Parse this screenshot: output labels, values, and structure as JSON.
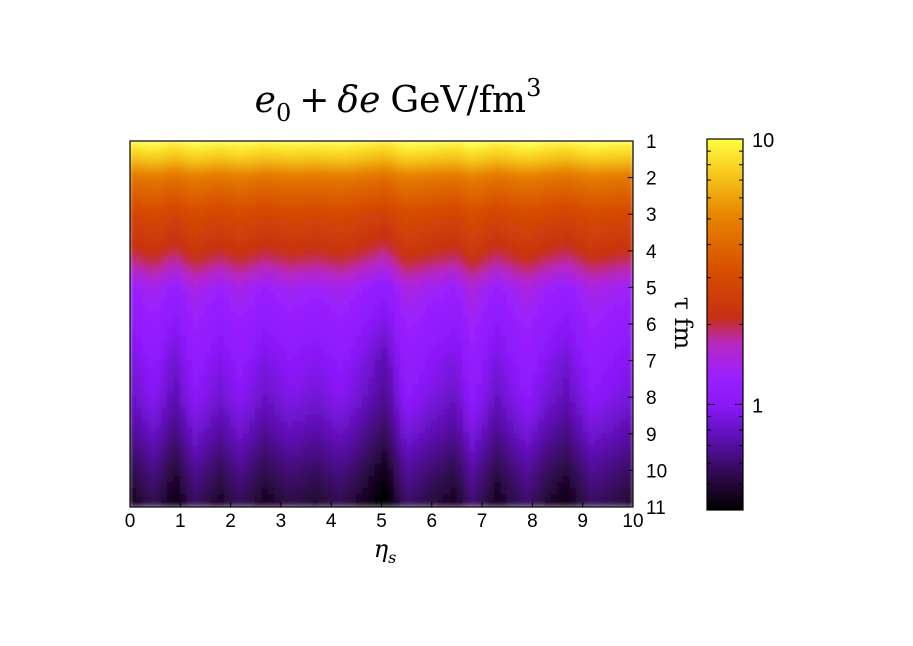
{
  "chart_data": {
    "type": "heatmap",
    "title_math": {
      "e": "e",
      "e_sub": "0",
      "plus": "+",
      "delta": "δe",
      "unit": "GeV/fm",
      "unit_sup": "3"
    },
    "xlabel": {
      "base": "η",
      "sub": "s"
    },
    "ylabel": "τ fm",
    "x": {
      "range": [
        0,
        10
      ],
      "ticks": [
        0,
        1,
        2,
        3,
        4,
        5,
        6,
        7,
        8,
        9,
        10
      ],
      "tick_labels": [
        "0",
        "1",
        "2",
        "3",
        "4",
        "5",
        "6",
        "7",
        "8",
        "9",
        "10"
      ]
    },
    "y": {
      "range": [
        1,
        11
      ],
      "reversed": true,
      "side": "right",
      "ticks": [
        1,
        2,
        3,
        4,
        5,
        6,
        7,
        8,
        9,
        10,
        11
      ],
      "tick_labels": [
        "1",
        "2",
        "3",
        "4",
        "5",
        "6",
        "7",
        "8",
        "9",
        "10",
        "11"
      ]
    },
    "colorbar": {
      "scale": "log",
      "range": [
        0.4,
        10
      ],
      "tick_values": [
        10,
        1
      ],
      "tick_labels": [
        "10",
        "1"
      ],
      "colors": [
        "#000000",
        "#3a0a5e",
        "#7a10d8",
        "#9a20ff",
        "#b030e0",
        "#c83010",
        "#e06400",
        "#f0a010",
        "#ffff40"
      ]
    },
    "description_values": {
      "tau_profile": [
        {
          "tau": 1.0,
          "e": 10.0
        },
        {
          "tau": 2.0,
          "e": 4.5
        },
        {
          "tau": 3.0,
          "e": 2.9
        },
        {
          "tau": 4.0,
          "e": 2.2
        },
        {
          "tau": 5.0,
          "e": 1.35
        },
        {
          "tau": 6.0,
          "e": 1.15
        },
        {
          "tau": 7.0,
          "e": 1.0
        },
        {
          "tau": 8.0,
          "e": 0.9
        },
        {
          "tau": 9.0,
          "e": 0.75
        },
        {
          "tau": 10.0,
          "e": 0.6
        },
        {
          "tau": 11.0,
          "e": 0.5
        }
      ],
      "eta_modulation": [
        {
          "eta": 0.0,
          "f": 0.92
        },
        {
          "eta": 0.5,
          "f": 1.05
        },
        {
          "eta": 0.9,
          "f": 0.88
        },
        {
          "eta": 1.3,
          "f": 1.08
        },
        {
          "eta": 1.8,
          "f": 0.95
        },
        {
          "eta": 2.2,
          "f": 1.06
        },
        {
          "eta": 2.7,
          "f": 0.93
        },
        {
          "eta": 3.2,
          "f": 1.02
        },
        {
          "eta": 3.7,
          "f": 0.97
        },
        {
          "eta": 4.2,
          "f": 1.04
        },
        {
          "eta": 4.6,
          "f": 0.95
        },
        {
          "eta": 5.1,
          "f": 0.82
        },
        {
          "eta": 5.5,
          "f": 1.1
        },
        {
          "eta": 6.0,
          "f": 1.0
        },
        {
          "eta": 6.5,
          "f": 0.93
        },
        {
          "eta": 6.8,
          "f": 1.12
        },
        {
          "eta": 7.3,
          "f": 0.92
        },
        {
          "eta": 7.9,
          "f": 1.1
        },
        {
          "eta": 8.3,
          "f": 0.97
        },
        {
          "eta": 8.7,
          "f": 0.9
        },
        {
          "eta": 9.2,
          "f": 1.08
        },
        {
          "eta": 10.0,
          "f": 0.97
        }
      ]
    }
  }
}
